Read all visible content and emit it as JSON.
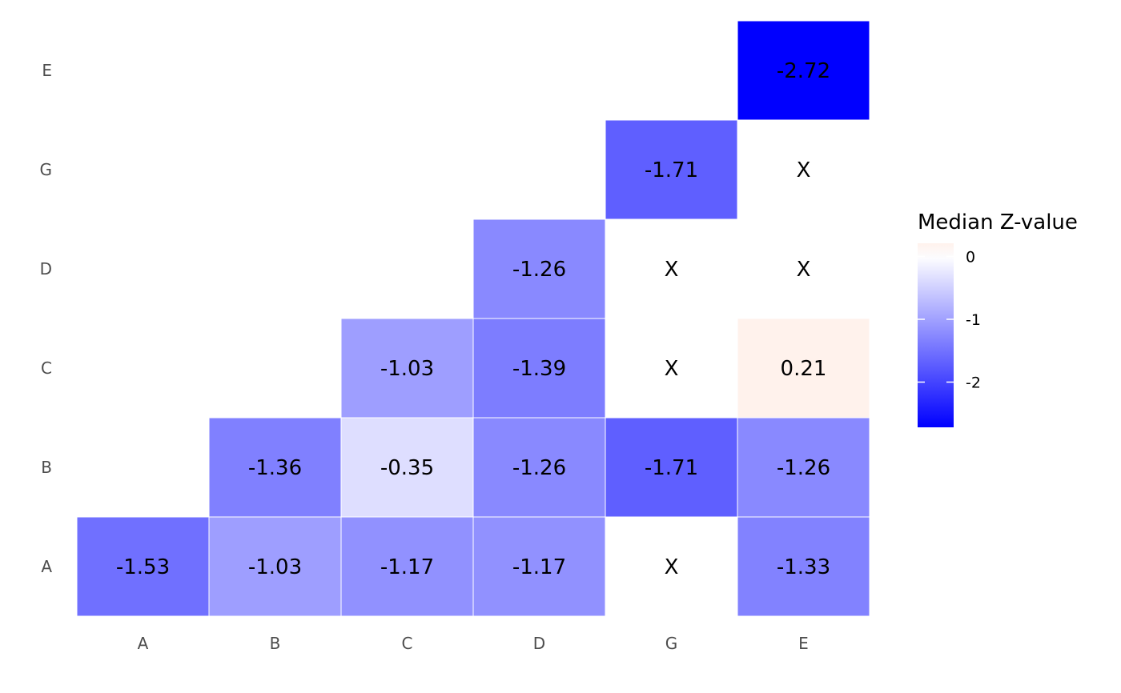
{
  "chart_data": {
    "type": "heatmap",
    "x_categories": [
      "A",
      "B",
      "C",
      "D",
      "G",
      "E"
    ],
    "y_categories": [
      "A",
      "B",
      "C",
      "D",
      "G",
      "E"
    ],
    "cells": [
      {
        "x": "A",
        "y": "A",
        "value": -1.53,
        "label": "-1.53"
      },
      {
        "x": "B",
        "y": "A",
        "value": -1.03,
        "label": "-1.03"
      },
      {
        "x": "C",
        "y": "A",
        "value": -1.17,
        "label": "-1.17"
      },
      {
        "x": "D",
        "y": "A",
        "value": -1.17,
        "label": "-1.17"
      },
      {
        "x": "G",
        "y": "A",
        "value": null,
        "label": "X"
      },
      {
        "x": "E",
        "y": "A",
        "value": -1.33,
        "label": "-1.33"
      },
      {
        "x": "B",
        "y": "B",
        "value": -1.36,
        "label": "-1.36"
      },
      {
        "x": "C",
        "y": "B",
        "value": -0.35,
        "label": "-0.35"
      },
      {
        "x": "D",
        "y": "B",
        "value": -1.26,
        "label": "-1.26"
      },
      {
        "x": "G",
        "y": "B",
        "value": -1.71,
        "label": "-1.71"
      },
      {
        "x": "E",
        "y": "B",
        "value": -1.26,
        "label": "-1.26"
      },
      {
        "x": "C",
        "y": "C",
        "value": -1.03,
        "label": "-1.03"
      },
      {
        "x": "D",
        "y": "C",
        "value": -1.39,
        "label": "-1.39"
      },
      {
        "x": "G",
        "y": "C",
        "value": null,
        "label": "X"
      },
      {
        "x": "E",
        "y": "C",
        "value": 0.21,
        "label": "0.21"
      },
      {
        "x": "D",
        "y": "D",
        "value": -1.26,
        "label": "-1.26"
      },
      {
        "x": "G",
        "y": "D",
        "value": null,
        "label": "X"
      },
      {
        "x": "E",
        "y": "D",
        "value": null,
        "label": "X"
      },
      {
        "x": "G",
        "y": "G",
        "value": -1.71,
        "label": "-1.71"
      },
      {
        "x": "E",
        "y": "G",
        "value": null,
        "label": "X"
      },
      {
        "x": "E",
        "y": "E",
        "value": -2.72,
        "label": "-2.72"
      }
    ],
    "legend": {
      "title": "Median Z-value",
      "position": "right",
      "min": -2.72,
      "max": 0.21,
      "ticks": [
        0,
        -1,
        -2
      ],
      "tick_labels": [
        "0",
        "-1",
        "-2"
      ]
    },
    "colors": {
      "low": "#0000ff",
      "mid": "#ffffff",
      "high": "#fff2ec",
      "missing": "#ffffff"
    },
    "grid": false
  }
}
